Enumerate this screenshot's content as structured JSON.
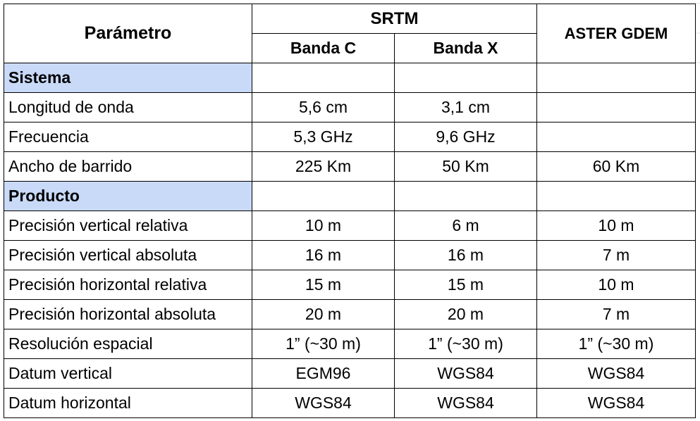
{
  "header": {
    "parametro": "Parámetro",
    "srtm": "SRTM",
    "banda_c": "Banda C",
    "banda_x": "Banda X",
    "aster": "ASTER GDEM"
  },
  "sections": [
    {
      "title": "Sistema",
      "rows": [
        {
          "label": "Longitud de onda",
          "c": "5,6 cm",
          "x": "3,1 cm",
          "aster": ""
        },
        {
          "label": "Frecuencia",
          "c": "5,3 GHz",
          "x": "9,6 GHz",
          "aster": ""
        },
        {
          "label": "Ancho de barrido",
          "c": "225 Km",
          "x": "50 Km",
          "aster": "60 Km"
        }
      ]
    },
    {
      "title": "Producto",
      "rows": [
        {
          "label": "Precisión vertical relativa",
          "c": "10 m",
          "x": "6 m",
          "aster": "10 m"
        },
        {
          "label": "Precisión vertical absoluta",
          "c": "16 m",
          "x": "16 m",
          "aster": "7 m"
        },
        {
          "label": "Precisión horizontal relativa",
          "c": "15 m",
          "x": "15 m",
          "aster": "10 m"
        },
        {
          "label": "Precisión horizontal absoluta",
          "c": "20 m",
          "x": "20 m",
          "aster": "7 m"
        },
        {
          "label": "Resolución espacial",
          "c": "1” (~30 m)",
          "x": "1” (~30 m)",
          "aster": "1” (~30 m)"
        },
        {
          "label": "Datum vertical",
          "c": "EGM96",
          "x": "WGS84",
          "aster": "WGS84"
        },
        {
          "label": "Datum horizontal",
          "c": "WGS84",
          "x": "WGS84",
          "aster": "WGS84"
        }
      ]
    }
  ],
  "colors": {
    "section_bg": "#c9daf8",
    "border": "#000000"
  }
}
